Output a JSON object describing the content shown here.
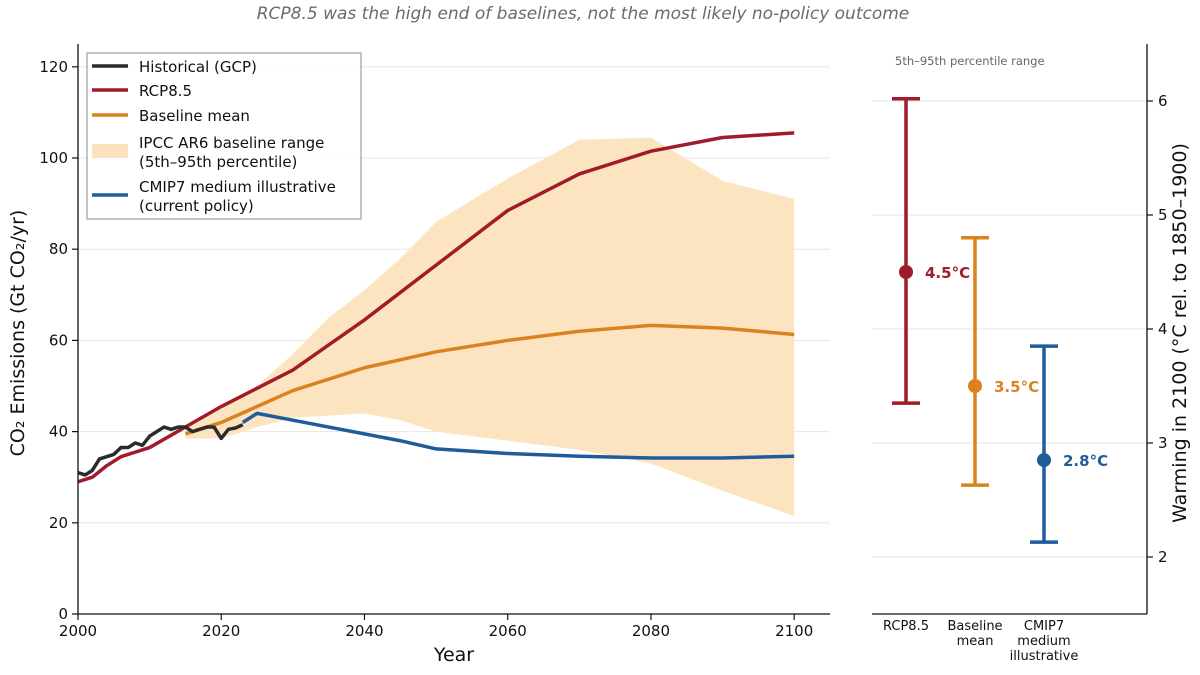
{
  "subtitle": "RCP8.5 was the high end of baselines, not the most likely no-policy outcome",
  "chart_data": [
    {
      "type": "line",
      "xlabel": "Year",
      "ylabel": "CO₂ Emissions (Gt CO₂/yr)",
      "xlim": [
        2000,
        2105
      ],
      "ylim": [
        0,
        125
      ],
      "xticks": [
        "2000",
        "2020",
        "2040",
        "2060",
        "2080",
        "2100"
      ],
      "yticks": [
        "0",
        "20",
        "40",
        "60",
        "80",
        "100",
        "120"
      ],
      "grid": "horizontal",
      "legend_position": "top-left",
      "legend": [
        {
          "label_lines": [
            "Historical (GCP)"
          ],
          "kind": "line",
          "color": "#2b2b2b"
        },
        {
          "label_lines": [
            "RCP8.5"
          ],
          "kind": "line",
          "color": "#a01c2b"
        },
        {
          "label_lines": [
            "Baseline mean"
          ],
          "kind": "line",
          "color": "#d9831f"
        },
        {
          "label_lines": [
            "IPCC AR6 baseline range",
            "(5th–95th percentile)"
          ],
          "kind": "band",
          "color": "#fde3bd"
        },
        {
          "label_lines": [
            "CMIP7 medium illustrative",
            "(current policy)"
          ],
          "kind": "line",
          "color": "#1f5c9a"
        }
      ],
      "band": {
        "color": "#fde3bd",
        "x": [
          2015,
          2020,
          2025,
          2030,
          2035,
          2040,
          2045,
          2050,
          2060,
          2070,
          2080,
          2090,
          2100
        ],
        "lower": [
          38.5,
          38.5,
          41,
          43,
          43.5,
          44,
          42.5,
          40,
          38,
          36,
          33,
          27,
          21.5
        ],
        "upper": [
          40.5,
          45,
          50,
          57,
          65,
          71,
          78,
          86,
          95.5,
          104,
          104.5,
          95,
          91
        ]
      },
      "series": [
        {
          "color": "#a01c2b",
          "x": [
            2000,
            2002,
            2004,
            2006,
            2008,
            2010,
            2015,
            2020,
            2025,
            2030,
            2035,
            2040,
            2050,
            2060,
            2070,
            2080,
            2090,
            2100
          ],
          "y": [
            29,
            30,
            32.5,
            34.5,
            35.5,
            36.5,
            41,
            45.5,
            49.5,
            53.5,
            59,
            64.5,
            76.5,
            88.5,
            96.5,
            101.5,
            104.5,
            105.5
          ]
        },
        {
          "color": "#d9831f",
          "x": [
            2015,
            2020,
            2025,
            2030,
            2035,
            2040,
            2050,
            2060,
            2070,
            2080,
            2090,
            2100
          ],
          "y": [
            39.5,
            42,
            45.5,
            49,
            51.5,
            54,
            57.5,
            60,
            62,
            63.3,
            62.7,
            61.3
          ]
        },
        {
          "color": "#1f5c9a",
          "x": [
            2023,
            2025,
            2030,
            2035,
            2040,
            2045,
            2050,
            2060,
            2070,
            2080,
            2090,
            2100
          ],
          "y": [
            42,
            44,
            42.5,
            41,
            39.5,
            38,
            36.2,
            35.2,
            34.6,
            34.2,
            34.2,
            34.6
          ]
        },
        {
          "color": "#2b2b2b",
          "x": [
            2000,
            2001,
            2002,
            2003,
            2004,
            2005,
            2006,
            2007,
            2008,
            2009,
            2010,
            2011,
            2012,
            2013,
            2014,
            2015,
            2016,
            2017,
            2018,
            2019,
            2020,
            2021,
            2022,
            2023
          ],
          "y": [
            31,
            30.5,
            31.5,
            34,
            34.5,
            35,
            36.5,
            36.5,
            37.5,
            37,
            39,
            40,
            41,
            40.5,
            41,
            41,
            40,
            40.5,
            41,
            41,
            38.5,
            40.5,
            40.8,
            41.5
          ]
        }
      ]
    },
    {
      "type": "scatter",
      "ylabel": "Warming in 2100 (°C rel. to 1850–1900)",
      "ylim": [
        1.5,
        6.5
      ],
      "yticks": [
        "2",
        "3",
        "4",
        "5",
        "6"
      ],
      "note": "5th–95th percentile range",
      "categories": [
        {
          "label_lines": [
            "RCP8.5"
          ],
          "color": "#a01c2b",
          "value": 4.5,
          "low": 3.35,
          "high": 6.02,
          "value_label": "4.5°C"
        },
        {
          "label_lines": [
            "Baseline",
            "mean"
          ],
          "color": "#d9831f",
          "value": 3.5,
          "low": 2.63,
          "high": 4.8,
          "value_label": "3.5°C"
        },
        {
          "label_lines": [
            "CMIP7",
            "medium",
            "illustrative"
          ],
          "color": "#1f5c9a",
          "value": 2.85,
          "low": 2.13,
          "high": 3.85,
          "value_label": "2.8°C"
        }
      ]
    }
  ]
}
